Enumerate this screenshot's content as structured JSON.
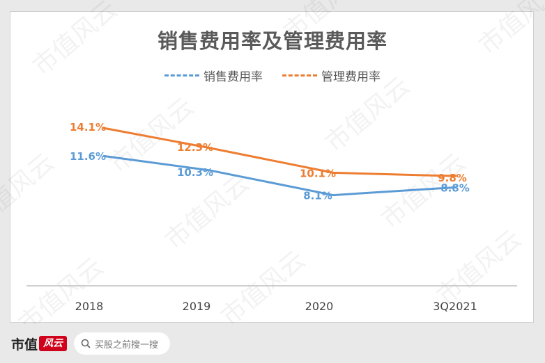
{
  "chart_data": {
    "type": "line",
    "title": "销售费用率及管理费用率",
    "categories": [
      "2018",
      "2019",
      "2020",
      "3Q2021"
    ],
    "series": [
      {
        "name": "销售费用率",
        "values": [
          11.6,
          10.3,
          8.1,
          8.8
        ],
        "labels": [
          "11.6%",
          "10.3%",
          "8.1%",
          "8.8%"
        ],
        "color": "#5b9bd5"
      },
      {
        "name": "管理费用率",
        "values": [
          14.1,
          12.3,
          10.1,
          9.8
        ],
        "labels": [
          "14.1%",
          "12.3%",
          "10.1%",
          "9.8%"
        ],
        "color": "#ed7d31"
      }
    ],
    "ylim": [
      0,
      22
    ],
    "grid": false,
    "legend": "top"
  },
  "footer": {
    "brand_name": "市值",
    "brand_mark": "风云",
    "search_placeholder": "买股之前搜一搜"
  },
  "watermark": "市值风云"
}
